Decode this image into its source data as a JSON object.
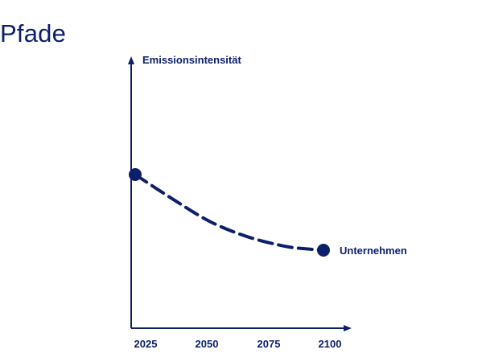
{
  "page": {
    "title": "Pfade"
  },
  "colors": {
    "primary": "#0b1f6b"
  },
  "chart_data": {
    "type": "line",
    "title": "Pfade",
    "ylabel": "Emissionsintensität",
    "xlabel": "",
    "x_ticks": [
      "2025",
      "2050",
      "2075",
      "2100"
    ],
    "series": [
      {
        "name": "Unternehmen",
        "style": "dashed",
        "endpoints": [
          "start",
          "end"
        ],
        "points": [
          {
            "x": 2025,
            "y": 1.0
          },
          {
            "x": 2040,
            "y": 0.74
          },
          {
            "x": 2055,
            "y": 0.5
          },
          {
            "x": 2070,
            "y": 0.34
          },
          {
            "x": 2085,
            "y": 0.24
          },
          {
            "x": 2095,
            "y": 0.21
          },
          {
            "x": 2100,
            "y": 0.2
          }
        ]
      }
    ],
    "grid": false,
    "legend": "label at end of line"
  }
}
